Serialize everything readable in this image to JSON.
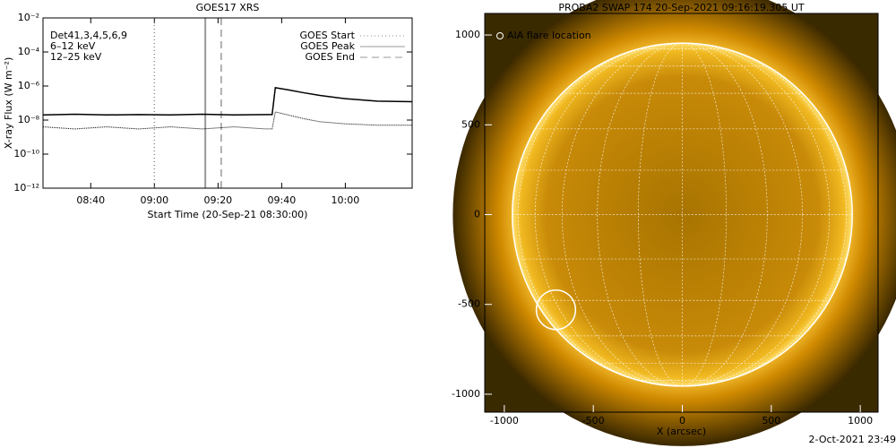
{
  "chart_data": [
    {
      "type": "line",
      "title": "GOES17 XRS",
      "xlabel": "Start Time (20-Sep-21 08:30:00)",
      "ylabel": "X-ray Flux (W m⁻²)",
      "log_scale": true,
      "xlim": [
        "08:25",
        "10:21"
      ],
      "xticks": [
        "08:40",
        "09:00",
        "09:20",
        "09:40",
        "10:00"
      ],
      "ylim": [
        1e-12,
        0.01
      ],
      "yticks": [
        {
          "value": 1e-12,
          "label": "10⁻¹²"
        },
        {
          "value": 1e-10,
          "label": "10⁻¹⁰"
        },
        {
          "value": 1e-08,
          "label": "10⁻⁸"
        },
        {
          "value": 1e-06,
          "label": "10⁻⁶"
        },
        {
          "value": 0.0001,
          "label": "10⁻⁴"
        },
        {
          "value": 0.01,
          "label": "10⁻²"
        }
      ],
      "x": [
        "08:25",
        "08:35",
        "08:45",
        "08:55",
        "09:05",
        "09:15",
        "09:25",
        "09:35",
        "09:37",
        "09:38",
        "09:42",
        "09:47",
        "09:52",
        "10:00",
        "10:10",
        "10:21"
      ],
      "series": [
        {
          "name": "Det41,3,4,5,6,9",
          "color": "#000000",
          "values": [
            2e-08,
            2.2e-08,
            2e-08,
            2.1e-08,
            2e-08,
            2.2e-08,
            2e-08,
            2.1e-08,
            2.1e-08,
            8e-07,
            6e-07,
            4e-07,
            2.8e-07,
            1.8e-07,
            1.3e-07,
            1.2e-07
          ]
        },
        {
          "color": "#000000",
          "values": [
            4e-09,
            3e-09,
            4e-09,
            3e-09,
            4e-09,
            3e-09,
            4e-09,
            3e-09,
            3e-09,
            3e-08,
            2e-08,
            1.2e-08,
            8e-09,
            6e-09,
            5e-09,
            5e-09
          ]
        }
      ],
      "channel_labels": [
        {
          "text": "6–12 keV",
          "color": "#cc00cc"
        },
        {
          "text": "12–25 keV",
          "color": "#00cc00"
        }
      ],
      "events": [
        {
          "name": "GOES Start",
          "x": "09:00",
          "style": "dotted"
        },
        {
          "name": "GOES Peak",
          "x": "09:16",
          "style": "solid"
        },
        {
          "name": "GOES End",
          "x": "09:21",
          "style": "dashed"
        }
      ]
    },
    {
      "type": "image",
      "title": "PROBA2 SWAP 174 20-Sep-2021 09:16:19.305 UT",
      "xlabel": "X (arcsec)",
      "xlim": [
        -1110,
        1100
      ],
      "ylim": [
        -1100,
        1120
      ],
      "xticks": [
        -1000,
        -500,
        0,
        500,
        1000
      ],
      "yticks": [
        -1000,
        -500,
        0,
        500,
        1000
      ],
      "sun_radius": 955,
      "flare": {
        "label": "AIA flare location",
        "x": -710,
        "y": -530,
        "r": 110
      }
    }
  ],
  "footer": "2-Oct-2021 23:49"
}
